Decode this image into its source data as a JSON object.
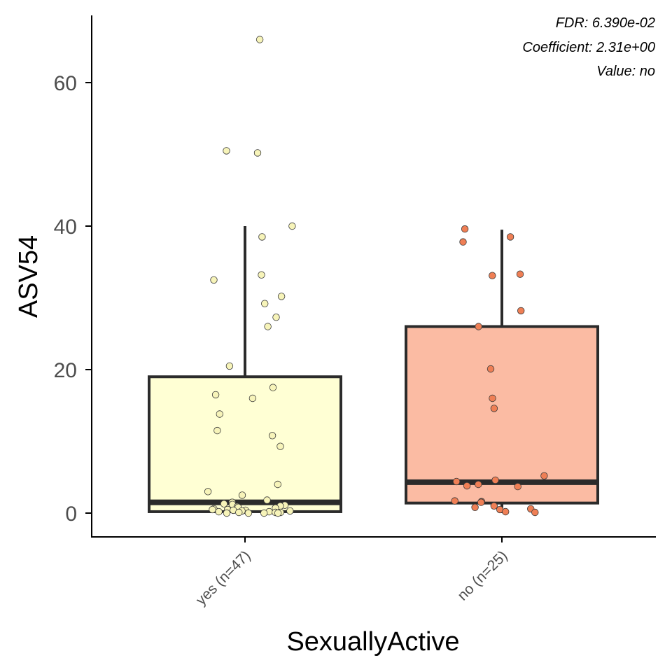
{
  "chart_data": {
    "type": "box",
    "title": "",
    "xlabel": "SexuallyActive",
    "ylabel": "ASV54",
    "ylim": [
      -6.5,
      69
    ],
    "y_ticks": [
      0,
      20,
      40,
      60
    ],
    "grid": false,
    "legend": "none",
    "categories": [
      "yes (n=47)",
      "no (n=25)"
    ],
    "annotations": [
      "FDR: 6.390e-02",
      "Coefficient: 2.31e+00",
      "Value: no"
    ],
    "colors": {
      "yes_fill": "#ffffd4",
      "yes_point": "#f7f4b9",
      "no_fill": "#fbbba3",
      "no_point": "#ef7f55",
      "box_stroke": "#2b2b2b",
      "axis": "#000000"
    },
    "series": [
      {
        "category": "yes (n=47)",
        "box": {
          "min": 0,
          "q1": 0.2,
          "median": 1.5,
          "q3": 19,
          "whisker_high": 40
        },
        "points": [
          66,
          50.5,
          50.2,
          40,
          38.5,
          33.2,
          32.5,
          30.2,
          29.2,
          27.3,
          26,
          20.5,
          17.5,
          16.5,
          16,
          13.8,
          11.5,
          10.8,
          9.3,
          4,
          3,
          2.5,
          1.8,
          1.5,
          1.3,
          1.2,
          1.1,
          1,
          0.9,
          0.8,
          0.7,
          0.6,
          0.5,
          0.5,
          0.4,
          0.4,
          0.3,
          0.3,
          0.2,
          0.2,
          0.1,
          0.1,
          0.1,
          0,
          0,
          0,
          0
        ]
      },
      {
        "category": "no (n=25)",
        "box": {
          "min": 0,
          "q1": 1.4,
          "median": 4.3,
          "q3": 26,
          "whisker_high": 39.5
        },
        "points": [
          39.6,
          38.5,
          37.8,
          33.3,
          33.1,
          28.2,
          26,
          20.1,
          16,
          14.6,
          5.2,
          4.6,
          4.4,
          4,
          3.8,
          3.7,
          1.7,
          1.6,
          1.5,
          1,
          0.8,
          0.6,
          0.5,
          0.2,
          0.1
        ]
      }
    ]
  }
}
